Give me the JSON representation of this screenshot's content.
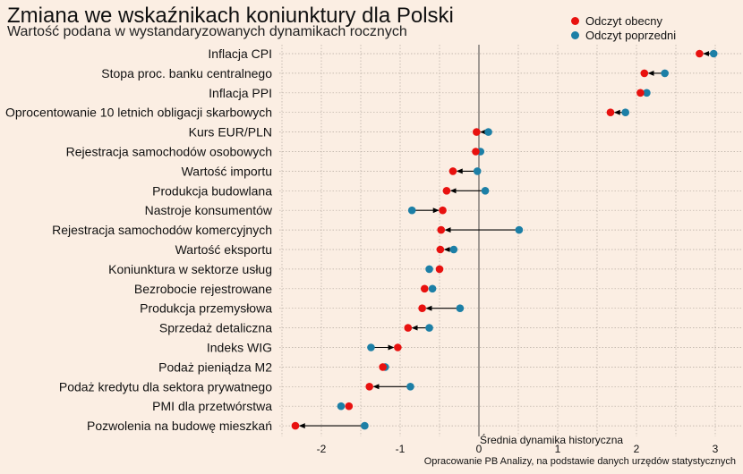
{
  "chart_data": {
    "type": "dumbbell",
    "title": "Zmiana we wskaźnikach koniunktury dla Polski",
    "subtitle": "Wartość podana w wystandaryzowanych dynamikach rocznych",
    "xlabel": "Średnia dynamika historyczna",
    "xlim": [
      -2.35,
      3.25
    ],
    "xticks": [
      -2,
      -1,
      0,
      1,
      2,
      3
    ],
    "xtick_labels": [
      "-2",
      "-1",
      "0",
      "1",
      "2",
      "3"
    ],
    "grid": true,
    "legend_position": "top-right",
    "series": [
      {
        "name": "Odczyt obecny",
        "color": "#e8110f"
      },
      {
        "name": "Odczyt poprzedni",
        "color": "#1c7fa6"
      }
    ],
    "categories": [
      "Inflacja CPI",
      "Stopa proc. banku centralnego",
      "Inflacja PPI",
      "Oprocentowanie 10 letnich obligacji skarbowych",
      "Kurs EUR/PLN",
      "Rejestracja samochodów osobowych",
      "Wartość importu",
      "Produkcja budowlana",
      "Nastroje konsumentów",
      "Rejestracja samochodów komercyjnych",
      "Wartość eksportu",
      "Koniunktura w sektorze usług",
      "Bezrobocie rejestrowane",
      "Produkcja przemysłowa",
      "Sprzedaż detaliczna",
      "Indeks WIG",
      "Podaż pieniądza M2",
      "Podaż kredytu dla sektora prywatnego",
      "PMI dla przetwórstwa",
      "Pozwolenia na budowę mieszkań"
    ],
    "current": [
      2.8,
      2.1,
      2.05,
      1.67,
      -0.03,
      -0.04,
      -0.33,
      -0.41,
      -0.46,
      -0.48,
      -0.49,
      -0.5,
      -0.69,
      -0.72,
      -0.9,
      -1.03,
      -1.22,
      -1.39,
      -1.65,
      -2.33
    ],
    "previous": [
      2.98,
      2.36,
      2.13,
      1.86,
      0.12,
      0.02,
      -0.02,
      0.08,
      -0.85,
      0.51,
      -0.32,
      -0.63,
      -0.59,
      -0.24,
      -0.63,
      -1.37,
      -1.19,
      -0.87,
      -1.75,
      -1.45
    ]
  },
  "caption": "Opracowanie  PB Analizy, na podstawie danych urzędów statystycznych",
  "colors": {
    "background": "#fbeee3",
    "grid": "#b5aaa0",
    "arrow": "#000000"
  }
}
